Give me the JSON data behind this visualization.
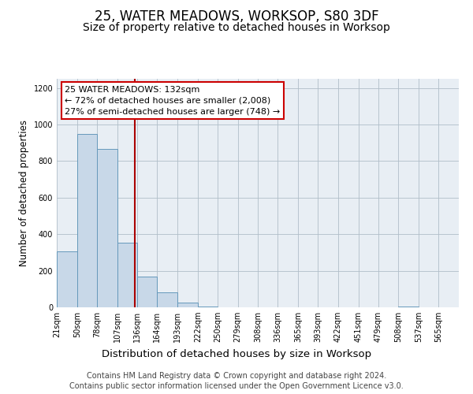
{
  "title": "25, WATER MEADOWS, WORKSOP, S80 3DF",
  "subtitle": "Size of property relative to detached houses in Worksop",
  "xlabel": "Distribution of detached houses by size in Worksop",
  "ylabel": "Number of detached properties",
  "bar_edges": [
    21,
    50,
    78,
    107,
    136,
    164,
    193,
    222,
    250,
    279,
    308,
    336,
    365,
    393,
    422,
    451,
    479,
    508,
    537,
    565,
    594
  ],
  "bar_heights": [
    305,
    950,
    865,
    355,
    170,
    82,
    25,
    5,
    0,
    0,
    0,
    0,
    0,
    0,
    0,
    0,
    0,
    4,
    0,
    0
  ],
  "bar_color": "#c8d8e8",
  "bar_edgecolor": "#6699bb",
  "vline_x": 132,
  "vline_color": "#aa0000",
  "annotation_title": "25 WATER MEADOWS: 132sqm",
  "annotation_line1": "← 72% of detached houses are smaller (2,008)",
  "annotation_line2": "27% of semi-detached houses are larger (748) →",
  "annotation_box_facecolor": "#ffffff",
  "annotation_box_edgecolor": "#cc0000",
  "ylim": [
    0,
    1250
  ],
  "yticks": [
    0,
    200,
    400,
    600,
    800,
    1000,
    1200
  ],
  "bg_color": "#e8eef4",
  "grid_color": "#b0bec8",
  "footer_line1": "Contains HM Land Registry data © Crown copyright and database right 2024.",
  "footer_line2": "Contains public sector information licensed under the Open Government Licence v3.0.",
  "title_fontsize": 12,
  "subtitle_fontsize": 10,
  "tick_label_fontsize": 7,
  "ylabel_fontsize": 8.5,
  "xlabel_fontsize": 9.5,
  "annotation_fontsize": 8,
  "footer_fontsize": 7
}
